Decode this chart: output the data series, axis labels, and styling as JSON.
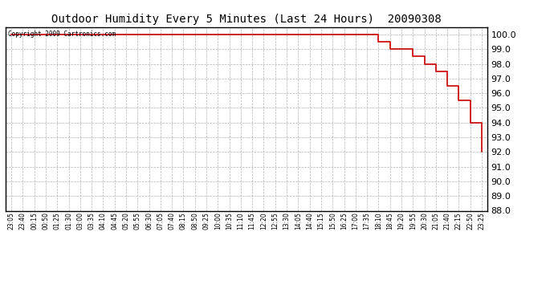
{
  "title": "Outdoor Humidity Every 5 Minutes (Last 24 Hours)  20090308",
  "copyright_text": "Copyright 2009 Cartronics.com",
  "line_color": "#cc0000",
  "background_color": "#ffffff",
  "plot_bg_color": "#ffffff",
  "ylim": [
    88.0,
    100.5
  ],
  "yticks": [
    88.0,
    89.0,
    90.0,
    91.0,
    92.0,
    93.0,
    94.0,
    95.0,
    96.0,
    97.0,
    98.0,
    99.0,
    100.0
  ],
  "grid_color": "#aaaaaa",
  "x_labels": [
    "23:05",
    "23:40",
    "00:15",
    "00:50",
    "01:25",
    "01:30",
    "03:00",
    "03:35",
    "04:10",
    "04:45",
    "05:20",
    "05:55",
    "06:30",
    "07:05",
    "07:40",
    "08:15",
    "08:50",
    "09:25",
    "10:00",
    "10:35",
    "11:10",
    "11:45",
    "12:20",
    "12:55",
    "13:30",
    "14:05",
    "14:40",
    "15:15",
    "15:50",
    "16:25",
    "17:00",
    "17:35",
    "18:10",
    "18:45",
    "19:20",
    "19:55",
    "20:30",
    "21:05",
    "21:40",
    "22:15",
    "22:50",
    "23:25"
  ],
  "data_x": [
    0,
    1,
    2,
    3,
    4,
    5,
    6,
    7,
    8,
    9,
    10,
    11,
    12,
    13,
    14,
    15,
    16,
    17,
    18,
    19,
    20,
    21,
    22,
    23,
    24,
    25,
    26,
    27,
    28,
    29,
    30,
    31,
    32,
    33,
    34,
    35,
    36,
    37,
    38,
    39,
    40,
    41
  ],
  "data_y": [
    100,
    100,
    100,
    100,
    100,
    100,
    100,
    100,
    100,
    100,
    100,
    100,
    100,
    100,
    100,
    100,
    100,
    100,
    100,
    100,
    100,
    100,
    100,
    100,
    100,
    100,
    100,
    100,
    100,
    100,
    100,
    100,
    99.5,
    99.0,
    99.0,
    98.5,
    98.0,
    97.5,
    96.5,
    95.5,
    94.0,
    92.0
  ]
}
